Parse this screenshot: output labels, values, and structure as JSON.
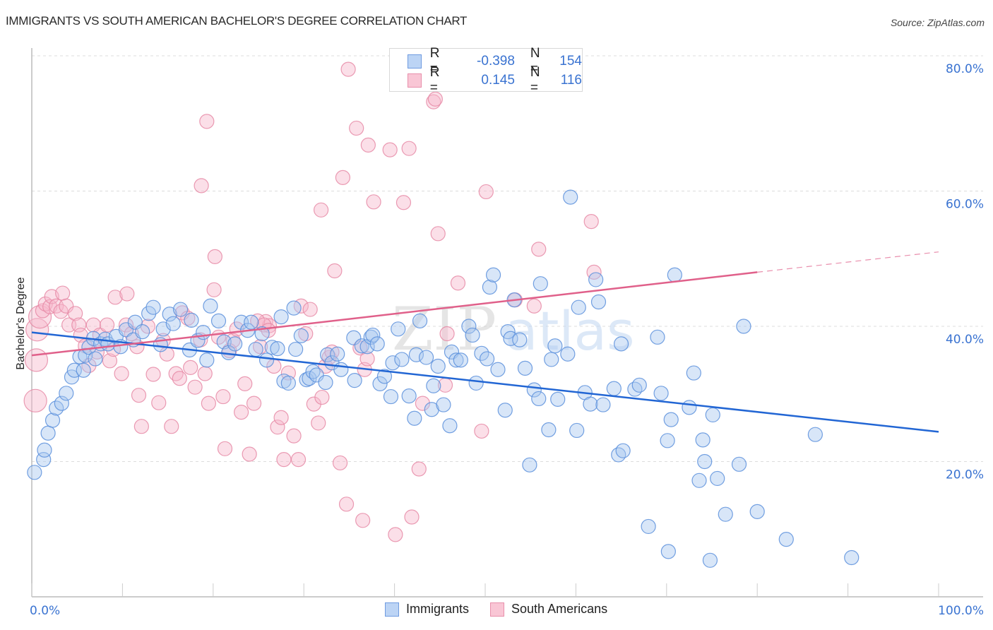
{
  "header": {
    "title": "IMMIGRANTS VS SOUTH AMERICAN BACHELOR'S DEGREE CORRELATION CHART",
    "source": "Source: ZipAtlas.com"
  },
  "watermark": {
    "zip": "ZIP",
    "atlas": "atlas"
  },
  "stats_legend": [
    {
      "series": "Immigrants",
      "r_label": "R =",
      "r_value": "-0.398",
      "n_label": "N =",
      "n_value": "154"
    },
    {
      "series": "South Americans",
      "r_label": "R =",
      "r_value": "0.145",
      "n_label": "N =",
      "n_value": "116"
    }
  ],
  "colors": {
    "immigrants_fill": "#a9c8f0",
    "immigrants_stroke": "#5b8fdc",
    "immigrants_line": "#2266d4",
    "south_americans_fill": "#f7b9cc",
    "south_americans_stroke": "#e68aa6",
    "south_americans_line": "#e0608a",
    "axis_text": "#3a73d1"
  },
  "chart_data": {
    "type": "scatter",
    "title": "IMMIGRANTS VS SOUTH AMERICAN BACHELOR'S DEGREE CORRELATION CHART",
    "xlabel": "",
    "ylabel": "Bachelor's Degree",
    "xlim": [
      0,
      100
    ],
    "ylim": [
      0,
      80
    ],
    "x_tick_labels": [
      "0.0%",
      "100.0%"
    ],
    "y_ticks": [
      20,
      40,
      60,
      80
    ],
    "y_tick_labels": [
      "20.0%",
      "40.0%",
      "60.0%",
      "80.0%"
    ],
    "grid": true,
    "legend_position": "bottom-center",
    "legend": [
      "Immigrants",
      "South Americans"
    ],
    "series": [
      {
        "name": "Immigrants",
        "r": -0.398,
        "n": 154,
        "trend": {
          "x": [
            0,
            100
          ],
          "y": [
            39.1,
            24.4
          ]
        },
        "points": [
          [
            0.3,
            18.4
          ],
          [
            1.3,
            20.3
          ],
          [
            1.4,
            21.7
          ],
          [
            1.8,
            24.2
          ],
          [
            2.3,
            26.1
          ],
          [
            2.7,
            27.9
          ],
          [
            3.3,
            28.6
          ],
          [
            3.8,
            30.1
          ],
          [
            4.4,
            32.5
          ],
          [
            4.7,
            33.5
          ],
          [
            5.3,
            35.5
          ],
          [
            5.7,
            33.5
          ],
          [
            5.9,
            35.7
          ],
          [
            6.3,
            36.9
          ],
          [
            6.8,
            38.2
          ],
          [
            7.0,
            35.2
          ],
          [
            7.6,
            37.4
          ],
          [
            8.1,
            38.1
          ],
          [
            8.4,
            37.4
          ],
          [
            9.3,
            38.5
          ],
          [
            9.8,
            37.0
          ],
          [
            10.4,
            39.5
          ],
          [
            11.2,
            38.0
          ],
          [
            11.4,
            40.6
          ],
          [
            12.2,
            39.2
          ],
          [
            12.9,
            41.9
          ],
          [
            13.4,
            42.8
          ],
          [
            14.2,
            37.3
          ],
          [
            14.5,
            39.6
          ],
          [
            15.2,
            41.8
          ],
          [
            15.6,
            40.4
          ],
          [
            16.4,
            42.5
          ],
          [
            17.4,
            36.5
          ],
          [
            17.6,
            40.9
          ],
          [
            18.3,
            37.9
          ],
          [
            18.9,
            39.1
          ],
          [
            19.3,
            35.0
          ],
          [
            19.7,
            43.0
          ],
          [
            20.6,
            40.8
          ],
          [
            21.2,
            37.7
          ],
          [
            21.7,
            36.1
          ],
          [
            22.4,
            37.4
          ],
          [
            23.1,
            40.6
          ],
          [
            23.8,
            39.4
          ],
          [
            24.2,
            40.6
          ],
          [
            24.7,
            36.6
          ],
          [
            25.4,
            38.9
          ],
          [
            25.9,
            35.0
          ],
          [
            26.5,
            36.9
          ],
          [
            27.1,
            36.7
          ],
          [
            27.5,
            41.4
          ],
          [
            27.8,
            31.9
          ],
          [
            28.3,
            31.6
          ],
          [
            28.9,
            42.7
          ],
          [
            29.1,
            36.6
          ],
          [
            29.7,
            38.6
          ],
          [
            30.3,
            32.1
          ],
          [
            30.6,
            32.3
          ],
          [
            31.0,
            33.3
          ],
          [
            31.4,
            32.8
          ],
          [
            32.4,
            31.7
          ],
          [
            32.6,
            35.8
          ],
          [
            33.1,
            34.6
          ],
          [
            33.7,
            35.9
          ],
          [
            34.1,
            33.6
          ],
          [
            35.5,
            38.3
          ],
          [
            35.6,
            32.0
          ],
          [
            36.4,
            37.1
          ],
          [
            37.0,
            37.0
          ],
          [
            37.4,
            38.4
          ],
          [
            37.6,
            38.7
          ],
          [
            38.1,
            37.4
          ],
          [
            38.4,
            31.5
          ],
          [
            38.9,
            32.6
          ],
          [
            39.6,
            29.6
          ],
          [
            39.8,
            34.6
          ],
          [
            40.4,
            39.6
          ],
          [
            40.8,
            35.1
          ],
          [
            41.6,
            29.7
          ],
          [
            42.2,
            26.4
          ],
          [
            42.4,
            35.8
          ],
          [
            42.8,
            40.8
          ],
          [
            43.5,
            35.4
          ],
          [
            44.1,
            27.7
          ],
          [
            44.3,
            31.2
          ],
          [
            44.8,
            34.1
          ],
          [
            45.4,
            28.4
          ],
          [
            46.1,
            25.3
          ],
          [
            46.3,
            36.2
          ],
          [
            46.8,
            35.0
          ],
          [
            47.3,
            35.0
          ],
          [
            48.2,
            40.0
          ],
          [
            48.6,
            38.7
          ],
          [
            49.0,
            31.6
          ],
          [
            49.6,
            36.0
          ],
          [
            50.2,
            35.2
          ],
          [
            50.5,
            45.8
          ],
          [
            50.9,
            47.6
          ],
          [
            51.4,
            33.6
          ],
          [
            52.2,
            27.6
          ],
          [
            52.5,
            39.2
          ],
          [
            52.8,
            38.2
          ],
          [
            53.2,
            43.9
          ],
          [
            53.8,
            38.0
          ],
          [
            54.4,
            33.8
          ],
          [
            54.9,
            19.5
          ],
          [
            55.4,
            30.6
          ],
          [
            55.9,
            29.3
          ],
          [
            56.1,
            46.3
          ],
          [
            57.3,
            35.1
          ],
          [
            57.7,
            37.1
          ],
          [
            58.0,
            29.2
          ],
          [
            59.1,
            35.9
          ],
          [
            60.1,
            24.6
          ],
          [
            60.3,
            42.8
          ],
          [
            61.0,
            30.2
          ],
          [
            61.6,
            28.5
          ],
          [
            62.2,
            46.9
          ],
          [
            62.5,
            43.6
          ],
          [
            63.0,
            28.4
          ],
          [
            64.2,
            30.8
          ],
          [
            64.7,
            21.0
          ],
          [
            65.0,
            37.4
          ],
          [
            65.2,
            21.6
          ],
          [
            66.5,
            30.7
          ],
          [
            67.0,
            31.3
          ],
          [
            68.0,
            10.4
          ],
          [
            69.0,
            38.4
          ],
          [
            69.4,
            30.1
          ],
          [
            70.1,
            23.1
          ],
          [
            70.5,
            26.2
          ],
          [
            70.2,
            6.7
          ],
          [
            70.9,
            47.6
          ],
          [
            72.5,
            28.0
          ],
          [
            73.0,
            33.1
          ],
          [
            73.6,
            17.2
          ],
          [
            74.0,
            23.2
          ],
          [
            74.2,
            20.0
          ],
          [
            74.8,
            5.4
          ],
          [
            75.1,
            26.9
          ],
          [
            75.6,
            17.5
          ],
          [
            76.5,
            12.2
          ],
          [
            78.0,
            19.6
          ],
          [
            78.5,
            40.0
          ],
          [
            80.0,
            12.6
          ],
          [
            83.2,
            8.5
          ],
          [
            86.4,
            24.0
          ],
          [
            90.4,
            5.8
          ],
          [
            59.4,
            59.1
          ],
          [
            57.0,
            24.7
          ]
        ]
      },
      {
        "name": "South Americans",
        "r": 0.145,
        "n": 116,
        "trend": {
          "x": [
            0,
            80
          ],
          "y": [
            35.7,
            48.0
          ],
          "dashed_extension": {
            "x": [
              80,
              100
            ],
            "y": [
              48.0,
              51.0
            ]
          }
        },
        "points": [
          [
            0.4,
            29.0
          ],
          [
            0.5,
            35.0
          ],
          [
            0.6,
            39.5
          ],
          [
            0.9,
            41.4
          ],
          [
            1.2,
            42.3
          ],
          [
            1.5,
            43.3
          ],
          [
            2.0,
            42.9
          ],
          [
            2.2,
            44.4
          ],
          [
            2.7,
            43.0
          ],
          [
            3.2,
            42.2
          ],
          [
            3.4,
            44.9
          ],
          [
            3.8,
            43.0
          ],
          [
            4.1,
            40.2
          ],
          [
            4.8,
            41.9
          ],
          [
            5.2,
            40.2
          ],
          [
            5.4,
            38.7
          ],
          [
            5.9,
            37.1
          ],
          [
            6.3,
            34.2
          ],
          [
            6.8,
            40.2
          ],
          [
            7.2,
            36.2
          ],
          [
            7.5,
            38.7
          ],
          [
            8.3,
            40.2
          ],
          [
            8.6,
            34.9
          ],
          [
            9.0,
            36.6
          ],
          [
            9.2,
            44.3
          ],
          [
            9.9,
            33.0
          ],
          [
            10.4,
            40.2
          ],
          [
            10.5,
            44.8
          ],
          [
            11.0,
            38.9
          ],
          [
            11.6,
            37.0
          ],
          [
            11.8,
            29.8
          ],
          [
            12.1,
            25.2
          ],
          [
            12.8,
            40.0
          ],
          [
            13.4,
            32.9
          ],
          [
            14.0,
            28.7
          ],
          [
            14.5,
            37.9
          ],
          [
            14.9,
            35.9
          ],
          [
            15.4,
            25.2
          ],
          [
            15.9,
            33.0
          ],
          [
            16.3,
            32.3
          ],
          [
            16.6,
            42.0
          ],
          [
            17.2,
            41.2
          ],
          [
            17.5,
            33.9
          ],
          [
            18.0,
            31.0
          ],
          [
            18.6,
            38.0
          ],
          [
            19.1,
            33.0
          ],
          [
            19.5,
            28.6
          ],
          [
            20.1,
            45.4
          ],
          [
            20.6,
            38.4
          ],
          [
            21.1,
            29.6
          ],
          [
            21.3,
            21.9
          ],
          [
            21.8,
            36.4
          ],
          [
            22.2,
            37.9
          ],
          [
            22.6,
            39.6
          ],
          [
            23.1,
            27.3
          ],
          [
            23.5,
            31.5
          ],
          [
            24.0,
            21.1
          ],
          [
            24.5,
            28.6
          ],
          [
            25.2,
            37.0
          ],
          [
            25.8,
            40.7
          ],
          [
            26.2,
            40.1
          ],
          [
            26.7,
            34.1
          ],
          [
            27.1,
            25.1
          ],
          [
            27.5,
            26.5
          ],
          [
            27.8,
            20.3
          ],
          [
            28.3,
            33.1
          ],
          [
            28.9,
            23.8
          ],
          [
            29.4,
            20.3
          ],
          [
            29.7,
            43.0
          ],
          [
            30.2,
            38.9
          ],
          [
            30.7,
            42.5
          ],
          [
            31.1,
            28.5
          ],
          [
            31.6,
            25.7
          ],
          [
            32.0,
            29.5
          ],
          [
            32.4,
            34.1
          ],
          [
            32.8,
            35.4
          ],
          [
            33.1,
            36.2
          ],
          [
            34.0,
            19.8
          ],
          [
            18.7,
            60.8
          ],
          [
            19.3,
            70.3
          ],
          [
            20.2,
            50.3
          ],
          [
            24.9,
            40.8
          ],
          [
            25.6,
            40.2
          ],
          [
            26.1,
            39.4
          ],
          [
            31.9,
            57.2
          ],
          [
            33.4,
            48.2
          ],
          [
            34.3,
            62.0
          ],
          [
            34.9,
            78.0
          ],
          [
            34.7,
            13.7
          ],
          [
            35.8,
            69.3
          ],
          [
            36.5,
            11.3
          ],
          [
            37.1,
            66.8
          ],
          [
            37.7,
            58.4
          ],
          [
            39.5,
            66.1
          ],
          [
            40.1,
            9.2
          ],
          [
            41.0,
            58.3
          ],
          [
            41.6,
            66.3
          ],
          [
            41.9,
            11.8
          ],
          [
            42.7,
            18.9
          ],
          [
            43.1,
            28.6
          ],
          [
            44.3,
            73.2
          ],
          [
            44.5,
            73.6
          ],
          [
            44.8,
            53.7
          ],
          [
            45.6,
            31.3
          ],
          [
            49.6,
            24.5
          ],
          [
            50.1,
            59.9
          ],
          [
            53.3,
            43.9
          ],
          [
            55.4,
            43.0
          ],
          [
            55.9,
            51.4
          ],
          [
            61.7,
            55.5
          ],
          [
            62.0,
            48.0
          ],
          [
            47.0,
            46.4
          ],
          [
            36.2,
            36.8
          ],
          [
            36.7,
            33.6
          ],
          [
            37.0,
            35.2
          ],
          [
            45.8,
            38.9
          ]
        ]
      }
    ]
  },
  "bottom_legend": [
    {
      "label": "Immigrants"
    },
    {
      "label": "South Americans"
    }
  ]
}
